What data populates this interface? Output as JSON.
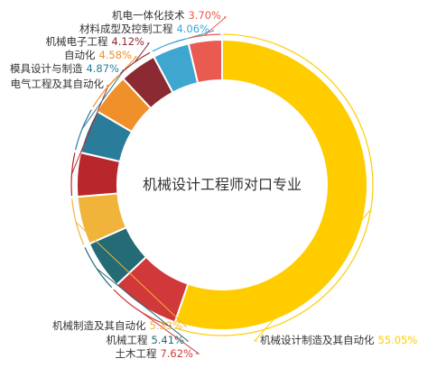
{
  "chart_data": {
    "type": "pie",
    "donut": true,
    "title": "机械设计工程师对口专业",
    "slices": [
      {
        "name": "机械设计制造及其自动化",
        "value": 55.05,
        "value_label": "55.05%",
        "color": "#FFCC00"
      },
      {
        "name": "土木工程",
        "value": 7.62,
        "value_label": "7.62%",
        "color": "#D0383A"
      },
      {
        "name": "机械工程",
        "value": 5.41,
        "value_label": "5.41%",
        "color": "#246B76"
      },
      {
        "name": "机械制造及其自动化",
        "value": 5.33,
        "value_label": "5.33%",
        "color": "#F0B43A"
      },
      {
        "name": "电气工程及其自动化",
        "value": 4.87,
        "value_label": "",
        "color": "#B8282A"
      },
      {
        "name": "模具设计与制造",
        "value": 4.87,
        "value_label": "4.87%",
        "color": "#2A7D9A"
      },
      {
        "name": "自动化",
        "value": 4.58,
        "value_label": "4.58%",
        "color": "#F0902A"
      },
      {
        "name": "机械电子工程",
        "value": 4.12,
        "value_label": "4.12%",
        "color": "#8B2A32"
      },
      {
        "name": "材料成型及控制工程",
        "value": 4.06,
        "value_label": "4.06%",
        "color": "#3EA6CF"
      },
      {
        "name": "机电一体化技术",
        "value": 3.7,
        "value_label": "3.70%",
        "color": "#E95A50"
      }
    ]
  }
}
